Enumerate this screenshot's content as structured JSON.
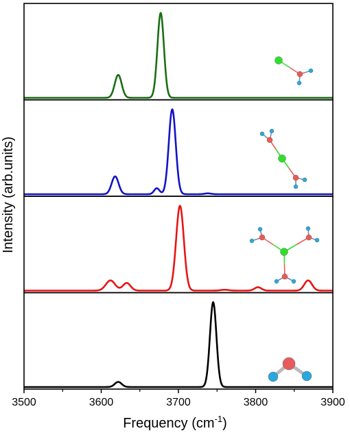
{
  "chart_data": {
    "type": "line",
    "xlabel_prefix": "Frequency (cm",
    "xlabel_sup": "-1",
    "xlabel_suffix": ")",
    "ylabel": "Intensity (arb.units)",
    "xlim": [
      3500,
      3900
    ],
    "x_ticks": [
      "3500",
      "3600",
      "3700",
      "3800",
      "3900"
    ],
    "ylim": [
      0,
      1
    ],
    "grid": false,
    "panels": [
      {
        "name": "panel-1",
        "color": "#1a6e14",
        "molecule": "cl-h2o",
        "peaks": [
          {
            "center": 3622,
            "height": 0.27,
            "width": 4.5
          },
          {
            "center": 3677,
            "height": 1.0,
            "width": 4.2
          }
        ]
      },
      {
        "name": "panel-2",
        "color": "#1212c8",
        "molecule": "cl-2h2o",
        "peaks": [
          {
            "center": 3618,
            "height": 0.21,
            "width": 4.5
          },
          {
            "center": 3672,
            "height": 0.07,
            "width": 3.5
          },
          {
            "center": 3692,
            "height": 1.0,
            "width": 4.5
          },
          {
            "center": 3738,
            "height": 0.01,
            "width": 4.0
          }
        ]
      },
      {
        "name": "panel-3",
        "color": "#e81414",
        "molecule": "cl-3h2o",
        "peaks": [
          {
            "center": 3612,
            "height": 0.12,
            "width": 6.0
          },
          {
            "center": 3633,
            "height": 0.09,
            "width": 5.0
          },
          {
            "center": 3702,
            "height": 1.0,
            "width": 5.0
          },
          {
            "center": 3760,
            "height": 0.01,
            "width": 5.0
          },
          {
            "center": 3803,
            "height": 0.04,
            "width": 4.5
          },
          {
            "center": 3868,
            "height": 0.12,
            "width": 5.0
          }
        ]
      },
      {
        "name": "panel-4",
        "color": "#000000",
        "molecule": "h2o",
        "peaks": [
          {
            "center": 3622,
            "height": 0.06,
            "width": 4.5
          },
          {
            "center": 3745,
            "height": 1.0,
            "width": 4.2
          }
        ]
      }
    ]
  }
}
